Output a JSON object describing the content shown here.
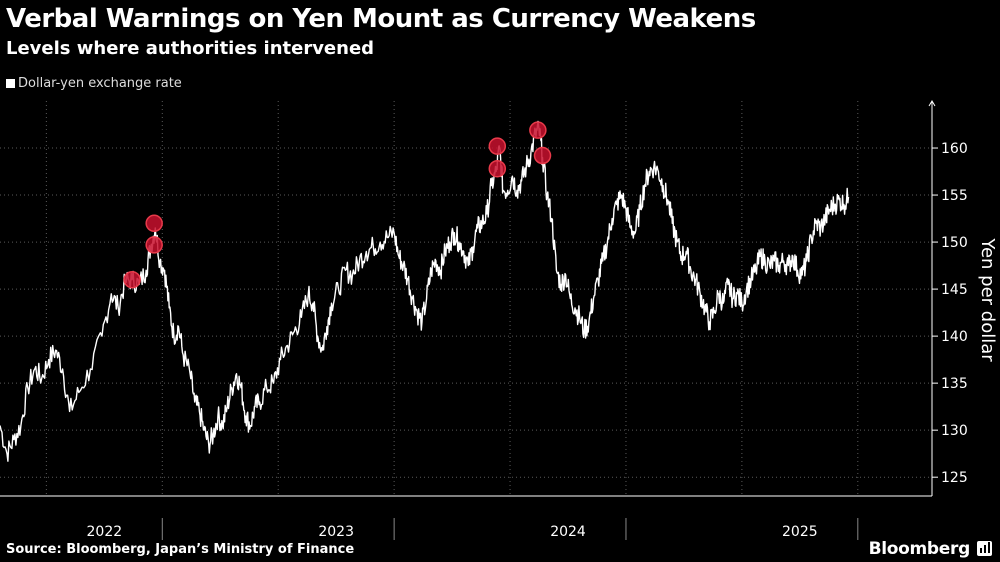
{
  "header": {
    "title": "Verbal Warnings on Yen Mount as Currency Weakens",
    "subtitle": "Levels where authorities intervened"
  },
  "legend": {
    "label": "Dollar-yen exchange rate",
    "swatch_color": "#ffffff"
  },
  "footer": {
    "source": "Source: Bloomberg, Japan’s Ministry of Finance",
    "brand": "Bloomberg"
  },
  "icons": {
    "brand": "bloomberg-bar-chart-icon"
  },
  "chart_data": {
    "type": "line",
    "title": "Verbal Warnings on Yen Mount as Currency Weakens",
    "subtitle": "Levels where authorities intervened",
    "ylabel": "Yen per dollar",
    "xlabel": "",
    "ylim": [
      123,
      165
    ],
    "xlim": [
      2021.8,
      2025.82
    ],
    "y_ticks": [
      125,
      130,
      135,
      140,
      145,
      150,
      155,
      160
    ],
    "x_year_labels": [
      {
        "label": "2022",
        "at": 2022.0
      },
      {
        "label": "2023",
        "at": 2023.0
      },
      {
        "label": "2024",
        "at": 2024.0
      },
      {
        "label": "2025",
        "at": 2025.0
      }
    ],
    "year_dividers": [
      2022.5,
      2023.5,
      2024.5,
      2025.5
    ],
    "grid": true,
    "legend_position": "top-left",
    "colors": {
      "line": "#ffffff",
      "marker_fill": "#c8102e",
      "marker_stroke": "#e83a4a",
      "grid": "#5a5a5a"
    },
    "series": [
      {
        "name": "Dollar-yen exchange rate",
        "points": [
          [
            2021.8,
            130.5
          ],
          [
            2021.83,
            127.5
          ],
          [
            2021.86,
            129.0
          ],
          [
            2021.89,
            130.5
          ],
          [
            2021.92,
            134.5
          ],
          [
            2021.95,
            136.5
          ],
          [
            2021.98,
            135.5
          ],
          [
            2022.01,
            137.5
          ],
          [
            2022.04,
            138.5
          ],
          [
            2022.07,
            136.5
          ],
          [
            2022.1,
            132.0
          ],
          [
            2022.14,
            134.0
          ],
          [
            2022.19,
            136.5
          ],
          [
            2022.24,
            140.0
          ],
          [
            2022.28,
            144.5
          ],
          [
            2022.31,
            143.0
          ],
          [
            2022.34,
            145.8
          ],
          [
            2022.37,
            146.0
          ],
          [
            2022.4,
            145.5
          ],
          [
            2022.43,
            147.0
          ],
          [
            2022.45,
            149.5
          ],
          [
            2022.47,
            151.5
          ],
          [
            2022.49,
            148.0
          ],
          [
            2022.51,
            147.0
          ],
          [
            2022.53,
            143.0
          ],
          [
            2022.55,
            140.0
          ],
          [
            2022.57,
            141.0
          ],
          [
            2022.59,
            138.0
          ],
          [
            2022.62,
            136.0
          ],
          [
            2022.64,
            133.0
          ],
          [
            2022.66,
            132.0
          ],
          [
            2022.68,
            130.0
          ],
          [
            2022.7,
            128.5
          ],
          [
            2022.72,
            129.5
          ],
          [
            2022.74,
            131.5
          ],
          [
            2022.76,
            130.5
          ],
          [
            2022.78,
            132.5
          ],
          [
            2022.8,
            134.5
          ],
          [
            2022.82,
            136.0
          ],
          [
            2022.84,
            134.5
          ],
          [
            2022.86,
            131.5
          ],
          [
            2022.88,
            130.5
          ],
          [
            2022.9,
            132.5
          ],
          [
            2022.92,
            133.0
          ],
          [
            2022.95,
            134.5
          ],
          [
            2022.98,
            135.0
          ],
          [
            2023.01,
            137.5
          ],
          [
            2023.04,
            139.0
          ],
          [
            2023.07,
            140.5
          ],
          [
            2023.1,
            142.0
          ],
          [
            2023.13,
            144.5
          ],
          [
            2023.15,
            143.5
          ],
          [
            2023.17,
            140.0
          ],
          [
            2023.19,
            138.5
          ],
          [
            2023.21,
            141.0
          ],
          [
            2023.23,
            143.5
          ],
          [
            2023.26,
            145.0
          ],
          [
            2023.29,
            147.0
          ],
          [
            2023.32,
            146.5
          ],
          [
            2023.35,
            148.0
          ],
          [
            2023.38,
            149.0
          ],
          [
            2023.41,
            149.5
          ],
          [
            2023.44,
            150.0
          ],
          [
            2023.47,
            150.5
          ],
          [
            2023.5,
            151.0
          ],
          [
            2023.52,
            148.5
          ],
          [
            2023.54,
            147.5
          ],
          [
            2023.56,
            146.0
          ],
          [
            2023.58,
            144.0
          ],
          [
            2023.6,
            142.5
          ],
          [
            2023.62,
            141.5
          ],
          [
            2023.64,
            144.0
          ],
          [
            2023.66,
            147.0
          ],
          [
            2023.68,
            148.0
          ],
          [
            2023.7,
            147.0
          ],
          [
            2023.72,
            149.0
          ],
          [
            2023.74,
            150.0
          ],
          [
            2023.76,
            151.0
          ],
          [
            2023.78,
            150.0
          ],
          [
            2023.8,
            149.0
          ],
          [
            2023.82,
            147.5
          ],
          [
            2023.84,
            149.5
          ],
          [
            2023.86,
            151.5
          ],
          [
            2023.88,
            152.0
          ],
          [
            2023.9,
            153.0
          ],
          [
            2023.92,
            156.0
          ],
          [
            2023.94,
            157.5
          ],
          [
            2023.955,
            160.0
          ],
          [
            2023.97,
            155.5
          ],
          [
            2023.99,
            155.5
          ],
          [
            2024.01,
            157.0
          ],
          [
            2024.03,
            155.5
          ],
          [
            2024.05,
            156.5
          ],
          [
            2024.07,
            158.0
          ],
          [
            2024.09,
            159.5
          ],
          [
            2024.11,
            161.5
          ],
          [
            2024.125,
            162.0
          ],
          [
            2024.14,
            159.0
          ],
          [
            2024.16,
            155.0
          ],
          [
            2024.18,
            152.5
          ],
          [
            2024.2,
            147.0
          ],
          [
            2024.22,
            145.5
          ],
          [
            2024.24,
            146.5
          ],
          [
            2024.26,
            144.0
          ],
          [
            2024.28,
            143.0
          ],
          [
            2024.3,
            142.0
          ],
          [
            2024.32,
            140.5
          ],
          [
            2024.34,
            141.5
          ],
          [
            2024.36,
            144.0
          ],
          [
            2024.38,
            146.0
          ],
          [
            2024.4,
            148.0
          ],
          [
            2024.42,
            150.0
          ],
          [
            2024.44,
            152.5
          ],
          [
            2024.46,
            154.0
          ],
          [
            2024.48,
            155.0
          ],
          [
            2024.5,
            153.5
          ],
          [
            2024.52,
            151.5
          ],
          [
            2024.54,
            151.0
          ],
          [
            2024.56,
            153.5
          ],
          [
            2024.58,
            156.0
          ],
          [
            2024.6,
            157.5
          ],
          [
            2024.62,
            158.0
          ],
          [
            2024.64,
            157.5
          ],
          [
            2024.66,
            156.0
          ],
          [
            2024.68,
            154.5
          ],
          [
            2024.7,
            152.0
          ],
          [
            2024.72,
            150.0
          ],
          [
            2024.74,
            148.5
          ],
          [
            2024.76,
            149.0
          ],
          [
            2024.78,
            147.0
          ],
          [
            2024.8,
            146.0
          ],
          [
            2024.82,
            144.5
          ],
          [
            2024.84,
            143.0
          ],
          [
            2024.86,
            141.5
          ],
          [
            2024.88,
            142.5
          ],
          [
            2024.9,
            144.5
          ],
          [
            2024.92,
            143.5
          ],
          [
            2024.94,
            145.5
          ],
          [
            2024.96,
            144.0
          ],
          [
            2024.98,
            144.5
          ],
          [
            2025.0,
            143.5
          ],
          [
            2025.02,
            145.0
          ],
          [
            2025.04,
            146.0
          ],
          [
            2025.06,
            147.0
          ],
          [
            2025.08,
            148.5
          ],
          [
            2025.1,
            148.0
          ],
          [
            2025.12,
            147.5
          ],
          [
            2025.14,
            148.0
          ],
          [
            2025.16,
            147.5
          ],
          [
            2025.18,
            148.0
          ],
          [
            2025.2,
            147.5
          ],
          [
            2025.22,
            148.5
          ],
          [
            2025.24,
            147.0
          ],
          [
            2025.26,
            146.5
          ],
          [
            2025.28,
            148.0
          ],
          [
            2025.3,
            150.5
          ],
          [
            2025.32,
            152.0
          ],
          [
            2025.34,
            151.5
          ],
          [
            2025.36,
            152.5
          ],
          [
            2025.38,
            153.5
          ],
          [
            2025.4,
            154.0
          ],
          [
            2025.42,
            154.5
          ],
          [
            2025.44,
            154.0
          ],
          [
            2025.46,
            154.8
          ]
        ],
        "intervention_levels": [
          [
            2022.37,
            146.0
          ],
          [
            2022.465,
            152.0
          ],
          [
            2022.465,
            149.7
          ],
          [
            2023.945,
            160.2
          ],
          [
            2023.945,
            157.8
          ],
          [
            2024.12,
            161.9
          ],
          [
            2024.14,
            159.2
          ]
        ]
      }
    ]
  }
}
